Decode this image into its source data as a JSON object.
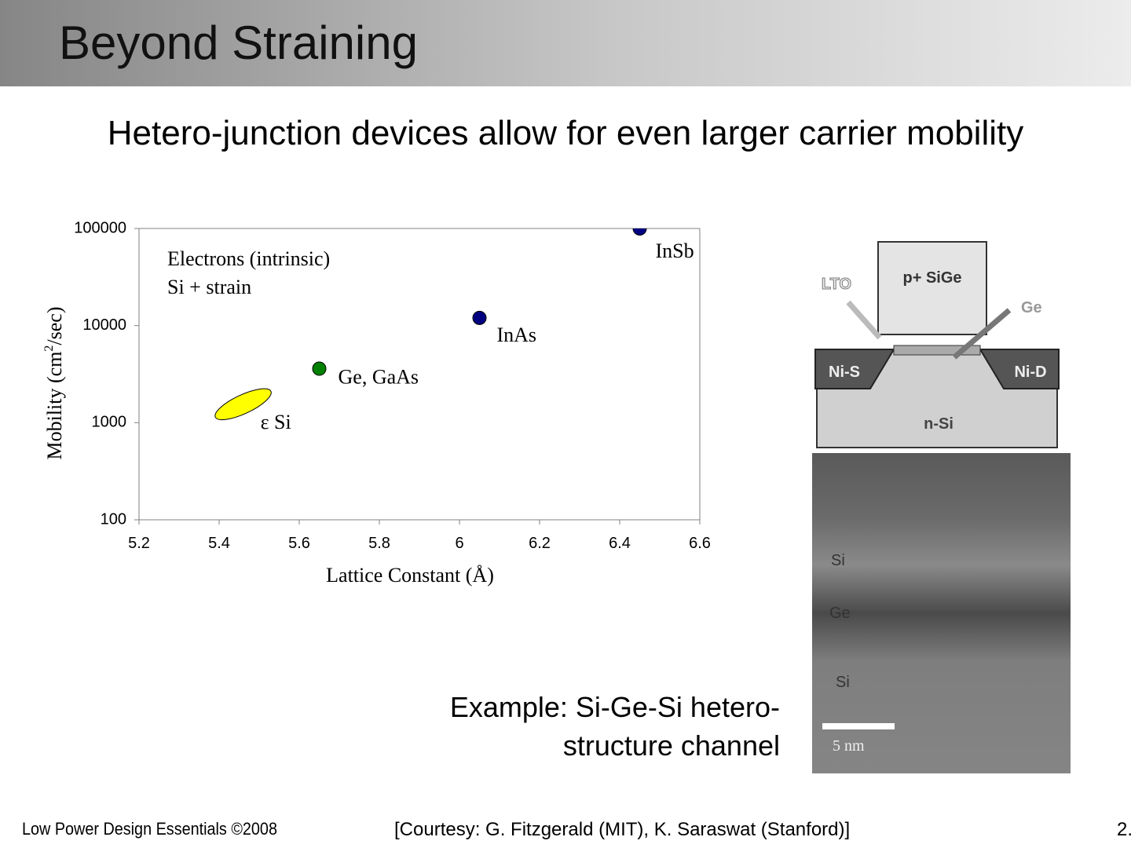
{
  "header": {
    "title": "Beyond Straining"
  },
  "subtitle": "Hetero-junction devices allow for even larger carrier mobility",
  "chart_data": {
    "type": "scatter",
    "xlabel": "Lattice Constant (Å)",
    "ylabel_parts": [
      "Mobility (cm",
      "2",
      "/sec)"
    ],
    "annotations": [
      "Electrons (intrinsic)",
      "Si + strain"
    ],
    "xlim": [
      5.2,
      6.6
    ],
    "xticks": [
      5.2,
      5.4,
      5.6,
      5.8,
      6,
      6.2,
      6.4,
      6.6
    ],
    "ylim": [
      100,
      100000
    ],
    "yticks": [
      100,
      1000,
      10000,
      100000
    ],
    "yscale": "log",
    "series": [
      {
        "name": "InSb",
        "color": "#000080",
        "marker": "circle",
        "x": [
          6.45
        ],
        "values": [
          100000
        ]
      },
      {
        "name": "InAs",
        "color": "#000080",
        "marker": "circle",
        "x": [
          6.05
        ],
        "values": [
          12000
        ]
      },
      {
        "name": "Ge, GaAs",
        "color": "#008000",
        "marker": "circle",
        "x": [
          5.65
        ],
        "values": [
          3600
        ]
      },
      {
        "name": "ε Si",
        "color": "#ffff00",
        "marker": "ellipse",
        "x": [
          5.46
        ],
        "values": [
          1550
        ]
      }
    ]
  },
  "figure": {
    "gate": "p+ SiGe",
    "lto": "LTO",
    "ge_arrow": "Ge",
    "source": "Ni-S",
    "drain": "Ni-D",
    "substrate": "n-Si",
    "tem_layers": [
      "Si",
      "Ge",
      "Si"
    ],
    "scale_bar": "5 nm"
  },
  "caption": [
    "Example: Si-Ge-Si hetero-",
    "structure channel"
  ],
  "footer": {
    "left": "Low Power Design Essentials ©2008",
    "center": "[Courtesy: G. Fitzgerald (MIT), K. Saraswat (Stanford)]",
    "right": "2."
  }
}
